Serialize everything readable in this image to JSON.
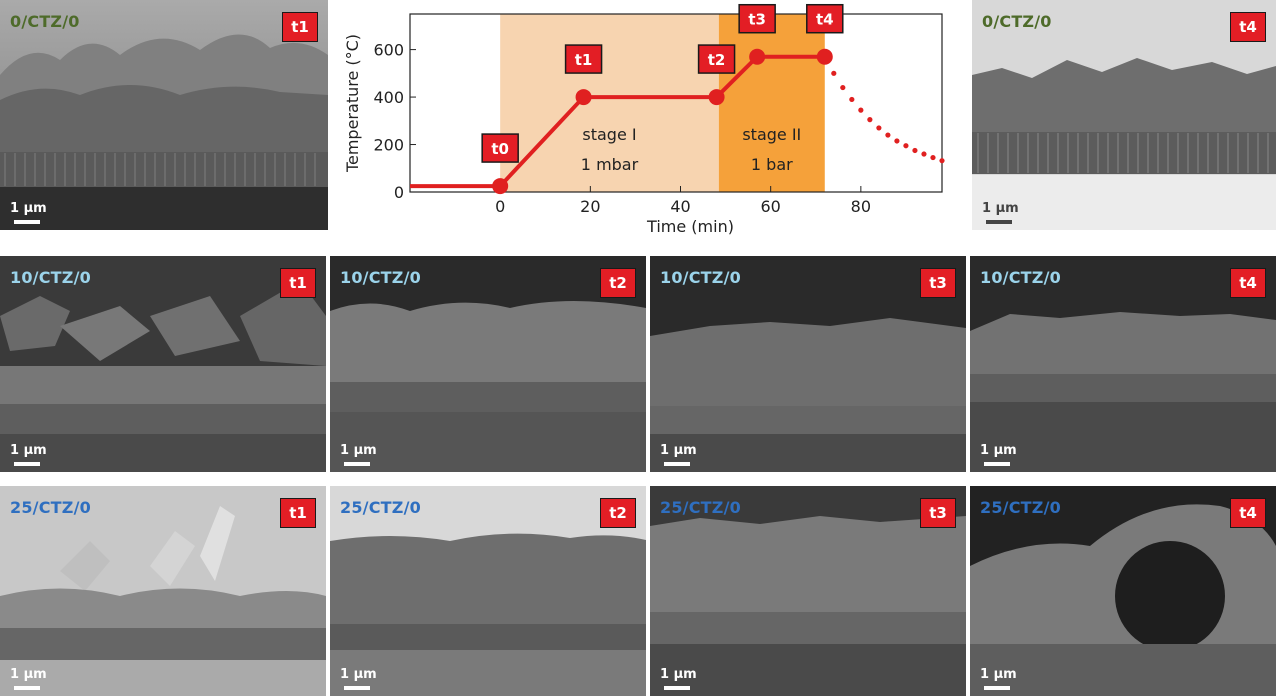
{
  "colors": {
    "label_green": "#4e6b2a",
    "label_cyan": "#9bd3ea",
    "label_blue": "#2f6fc0",
    "badge_red": "#e31e25",
    "curve_red": "#e02020",
    "stage1_fill": "#f7d4b0",
    "stage2_fill": "#f5a13a"
  },
  "scalebar": "1 µm",
  "panels": [
    {
      "sample": "0/CTZ/0",
      "time": "t1",
      "label_color": "#4e6b2a"
    },
    {
      "sample": "0/CTZ/0",
      "time": "t4",
      "label_color": "#4e6b2a"
    },
    {
      "sample": "10/CTZ/0",
      "time": "t1",
      "label_color": "#9bd3ea"
    },
    {
      "sample": "10/CTZ/0",
      "time": "t2",
      "label_color": "#9bd3ea"
    },
    {
      "sample": "10/CTZ/0",
      "time": "t3",
      "label_color": "#9bd3ea"
    },
    {
      "sample": "10/CTZ/0",
      "time": "t4",
      "label_color": "#9bd3ea"
    },
    {
      "sample": "25/CTZ/0",
      "time": "t1",
      "label_color": "#2f6fc0"
    },
    {
      "sample": "25/CTZ/0",
      "time": "t2",
      "label_color": "#2f6fc0"
    },
    {
      "sample": "25/CTZ/0",
      "time": "t3",
      "label_color": "#2f6fc0"
    },
    {
      "sample": "25/CTZ/0",
      "time": "t4",
      "label_color": "#2f6fc0"
    }
  ],
  "chart_data": {
    "type": "line",
    "xlabel": "Time (min)",
    "ylabel": "Temperature (°C)",
    "xlim": [
      -20,
      98
    ],
    "ylim": [
      0,
      750
    ],
    "xticks": [
      0,
      20,
      40,
      60,
      80
    ],
    "yticks": [
      0,
      200,
      400,
      600
    ],
    "series": [
      {
        "style": "solid",
        "x": [
          -20,
          0,
          18.5,
          48,
          57,
          72
        ],
        "y": [
          25,
          25,
          400,
          400,
          570,
          570
        ]
      },
      {
        "style": "dotted",
        "x": [
          72,
          74,
          76,
          78,
          80,
          82,
          84,
          86,
          88,
          90,
          92,
          94,
          96,
          98
        ],
        "y": [
          570,
          500,
          440,
          390,
          345,
          305,
          270,
          240,
          215,
          195,
          175,
          160,
          145,
          132
        ]
      }
    ],
    "stages": [
      {
        "label": "stage I",
        "condition": "1 mbar",
        "x_start": 0,
        "x_end": 48.5
      },
      {
        "label": "stage II",
        "condition": "1 bar",
        "x_start": 48.5,
        "x_end": 72
      }
    ],
    "markers": [
      {
        "label": "t0",
        "x": 0,
        "y": 25
      },
      {
        "label": "t1",
        "x": 18.5,
        "y": 400
      },
      {
        "label": "t2",
        "x": 48,
        "y": 400
      },
      {
        "label": "t3",
        "x": 57,
        "y": 570
      },
      {
        "label": "t4",
        "x": 72,
        "y": 570
      }
    ]
  }
}
